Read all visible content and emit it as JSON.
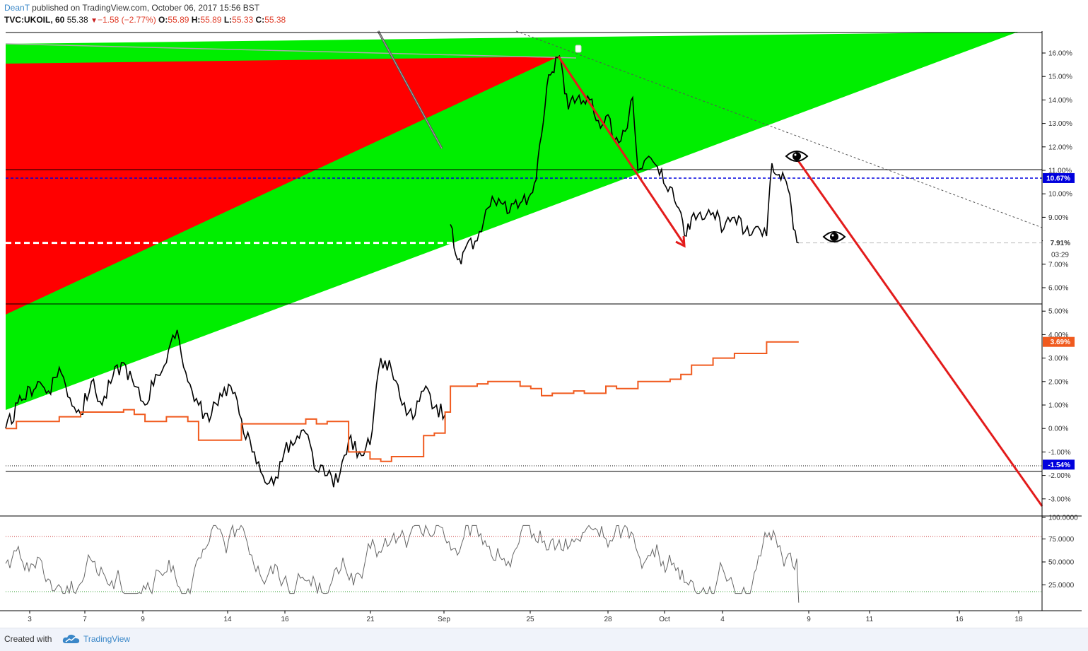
{
  "header": {
    "user": "DeanT",
    "published": " published on TradingView.com, October 06, 2017 15:56 BST",
    "symbol": "TVC:UKOIL, 60",
    "last": "55.38",
    "change": "−1.58 (−2.77%)",
    "o_label": "O:",
    "o_val": "55.89",
    "h_label": "H:",
    "h_val": "55.89",
    "l_label": "L:",
    "l_val": "55.33",
    "c_label": "C:",
    "c_val": "55.38"
  },
  "footer": {
    "created": "Created with",
    "brand": "TradingView"
  },
  "colors": {
    "green_channel": "#00ee00",
    "red_wedge": "#ff0000",
    "price_line": "#000000",
    "orange_series": "#f05a1e",
    "blue_line": "#0000dd",
    "arrow": "#e31c1c",
    "rsi_line": "#666666"
  },
  "chart_data": {
    "type": "line",
    "y_axis": {
      "ticks": [
        "16.00%",
        "15.00%",
        "14.00%",
        "13.00%",
        "12.00%",
        "11.00%",
        "10.00%",
        "9.00%",
        "8.00%",
        "7.00%",
        "6.00%",
        "5.00%",
        "4.00%",
        "3.00%",
        "2.00%",
        "1.00%",
        "0.00%",
        "-1.00%",
        "-2.00%",
        "-3.00%"
      ],
      "range": [
        -3.6,
        16.8
      ]
    },
    "x_axis": {
      "ticks": [
        "3",
        "7",
        "9",
        "14",
        "16",
        "21",
        "Sep",
        "25",
        "28",
        "Oct",
        "4",
        "9",
        "11",
        "16",
        "18"
      ]
    },
    "badges": {
      "blue_level": "10.67%",
      "current": "7.91%",
      "countdown": "03:29",
      "orange_last": "3.69%",
      "low_level": "-1.54%"
    },
    "rsi_axis": {
      "ticks": [
        "100.0000",
        "75.0000",
        "50.0000",
        "25.0000"
      ],
      "range": [
        0,
        100
      ],
      "upper": 80,
      "lower": 20
    },
    "price_series_pct": [
      [
        0,
        0.0
      ],
      [
        3,
        1.2
      ],
      [
        6,
        2.0
      ],
      [
        8,
        1.6
      ],
      [
        10,
        2.6
      ],
      [
        12,
        1.3
      ],
      [
        14,
        0.6
      ],
      [
        16,
        2.0
      ],
      [
        18,
        1.0
      ],
      [
        20,
        2.2
      ],
      [
        22,
        2.8
      ],
      [
        24,
        1.8
      ],
      [
        26,
        1.0
      ],
      [
        28,
        2.3
      ],
      [
        30,
        2.8
      ],
      [
        32,
        4.2
      ],
      [
        34,
        2.0
      ],
      [
        36,
        1.0
      ],
      [
        38,
        0.3
      ],
      [
        40,
        1.5
      ],
      [
        42,
        1.8
      ],
      [
        44,
        0.4
      ],
      [
        46,
        -1.0
      ],
      [
        48,
        -2.0
      ],
      [
        50,
        -2.4
      ],
      [
        52,
        -1.0
      ],
      [
        54,
        -0.6
      ],
      [
        56,
        -0.2
      ],
      [
        58,
        -1.8
      ],
      [
        60,
        -2.0
      ],
      [
        62,
        -2.3
      ],
      [
        64,
        -0.5
      ],
      [
        66,
        -1.0
      ],
      [
        68,
        -0.7
      ],
      [
        70,
        3.0
      ],
      [
        72,
        2.5
      ],
      [
        74,
        1.0
      ],
      [
        76,
        0.4
      ],
      [
        78,
        1.6
      ],
      [
        80,
        0.9
      ],
      [
        82,
        0.6
      ],
      [
        83,
        8.7
      ],
      [
        84,
        7.4
      ],
      [
        85,
        7.0
      ],
      [
        86,
        7.8
      ],
      [
        88,
        8.0
      ],
      [
        90,
        9.4
      ],
      [
        92,
        9.8
      ],
      [
        94,
        9.2
      ],
      [
        96,
        9.6
      ],
      [
        98,
        10.0
      ],
      [
        99,
        10.6
      ],
      [
        100,
        12.5
      ],
      [
        101,
        14.6
      ],
      [
        102,
        15.2
      ],
      [
        103,
        15.8
      ],
      [
        104,
        15.1
      ],
      [
        105,
        13.6
      ],
      [
        107,
        14.2
      ],
      [
        109,
        14.0
      ],
      [
        111,
        12.8
      ],
      [
        112,
        13.3
      ],
      [
        114,
        12.4
      ],
      [
        116,
        12.8
      ],
      [
        117,
        14.1
      ],
      [
        118,
        11.0
      ],
      [
        120,
        11.6
      ],
      [
        122,
        10.8
      ],
      [
        124,
        10.3
      ],
      [
        126,
        9.2
      ],
      [
        127,
        8.2
      ],
      [
        128,
        9.0
      ],
      [
        130,
        8.9
      ],
      [
        132,
        9.2
      ],
      [
        134,
        8.5
      ],
      [
        136,
        9.0
      ],
      [
        138,
        8.4
      ],
      [
        140,
        8.6
      ],
      [
        142,
        8.2
      ],
      [
        143,
        11.3
      ],
      [
        144,
        10.8
      ],
      [
        145,
        10.9
      ],
      [
        146,
        10.2
      ],
      [
        147,
        8.5
      ],
      [
        148,
        7.91
      ]
    ],
    "orange_series_pct": [
      [
        0,
        0.0
      ],
      [
        2,
        0.3
      ],
      [
        6,
        0.3
      ],
      [
        10,
        0.5
      ],
      [
        14,
        0.7
      ],
      [
        18,
        0.7
      ],
      [
        22,
        0.8
      ],
      [
        24,
        0.6
      ],
      [
        26,
        0.3
      ],
      [
        30,
        0.5
      ],
      [
        34,
        0.3
      ],
      [
        36,
        -0.5
      ],
      [
        40,
        -0.5
      ],
      [
        42,
        -0.5
      ],
      [
        44,
        0.2
      ],
      [
        48,
        0.2
      ],
      [
        52,
        0.2
      ],
      [
        56,
        0.4
      ],
      [
        58,
        0.2
      ],
      [
        60,
        0.3
      ],
      [
        62,
        0.3
      ],
      [
        64,
        -1.0
      ],
      [
        66,
        -1.0
      ],
      [
        68,
        -1.3
      ],
      [
        70,
        -1.4
      ],
      [
        72,
        -1.2
      ],
      [
        74,
        -1.2
      ],
      [
        78,
        -0.3
      ],
      [
        80,
        -0.2
      ],
      [
        82,
        0.7
      ],
      [
        83,
        1.8
      ],
      [
        86,
        1.8
      ],
      [
        88,
        1.9
      ],
      [
        90,
        2.0
      ],
      [
        92,
        2.0
      ],
      [
        96,
        1.8
      ],
      [
        98,
        1.7
      ],
      [
        100,
        1.4
      ],
      [
        102,
        1.5
      ],
      [
        104,
        1.5
      ],
      [
        106,
        1.6
      ],
      [
        108,
        1.5
      ],
      [
        110,
        1.5
      ],
      [
        112,
        1.8
      ],
      [
        114,
        1.7
      ],
      [
        116,
        1.7
      ],
      [
        118,
        2.0
      ],
      [
        122,
        2.0
      ],
      [
        124,
        2.1
      ],
      [
        126,
        2.3
      ],
      [
        128,
        2.7
      ],
      [
        132,
        3.0
      ],
      [
        136,
        3.2
      ],
      [
        140,
        3.2
      ],
      [
        142,
        3.69
      ],
      [
        148,
        3.69
      ]
    ]
  }
}
